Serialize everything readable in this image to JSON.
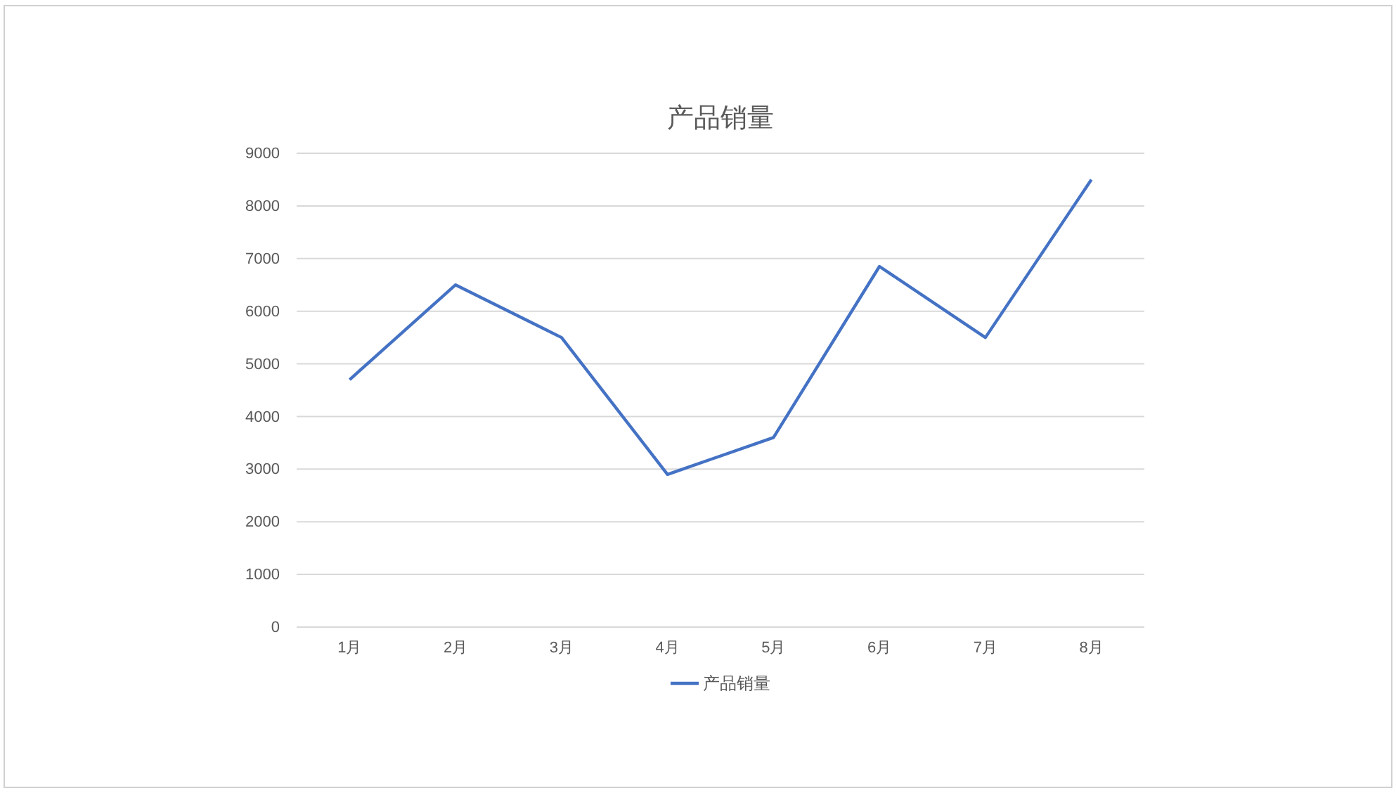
{
  "chart_data": {
    "type": "line",
    "title": "产品销量",
    "categories": [
      "1月",
      "2月",
      "3月",
      "4月",
      "5月",
      "6月",
      "7月",
      "8月"
    ],
    "series": [
      {
        "name": "产品销量",
        "color": "#4472c4",
        "values": [
          4700,
          6500,
          5500,
          2900,
          3600,
          6850,
          5500,
          8500
        ]
      }
    ],
    "ylim": [
      0,
      9000
    ],
    "yticks": [
      0,
      1000,
      2000,
      3000,
      4000,
      5000,
      6000,
      7000,
      8000,
      9000
    ],
    "grid": "y",
    "legend": "bottom",
    "marker": "none",
    "line_style": "solid"
  }
}
